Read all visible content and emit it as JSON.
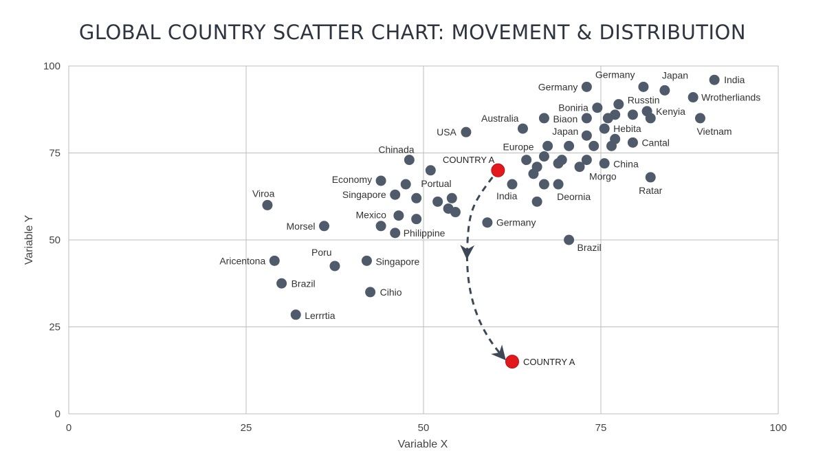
{
  "chart_data": {
    "type": "scatter",
    "title": "GLOBAL COUNTRY SCATTER CHART: MOVEMENT & DISTRIBUTION",
    "xlabel": "Variable X",
    "ylabel": "Variable Y",
    "xlim": [
      0,
      100
    ],
    "ylim": [
      0,
      100
    ],
    "xticks": [
      0,
      25,
      50,
      75,
      100
    ],
    "yticks": [
      0,
      25,
      50,
      75,
      100
    ],
    "grid": true,
    "colors": {
      "point": "#4f5b6b",
      "highlight": "#e3181d",
      "arrow": "#3d4856",
      "grid": "#bcbcbc"
    },
    "points": [
      {
        "x": 91,
        "y": 96,
        "label": "India"
      },
      {
        "x": 84,
        "y": 93,
        "label": "Japan"
      },
      {
        "x": 81,
        "y": 94,
        "label": "Germany"
      },
      {
        "x": 88,
        "y": 91,
        "label": "Wrotherliands"
      },
      {
        "x": 89,
        "y": 85,
        "label": "Vietnam"
      },
      {
        "x": 73,
        "y": 94,
        "label": "Germany"
      },
      {
        "x": 77.5,
        "y": 89,
        "label": "Russtin"
      },
      {
        "x": 74.5,
        "y": 88,
        "label": "Boniria"
      },
      {
        "x": 81.5,
        "y": 87,
        "label": "Kenyia"
      },
      {
        "x": 82,
        "y": 85,
        "label": ""
      },
      {
        "x": 79.5,
        "y": 86,
        "label": ""
      },
      {
        "x": 77,
        "y": 86,
        "label": ""
      },
      {
        "x": 73,
        "y": 85,
        "label": ""
      },
      {
        "x": 76,
        "y": 85,
        "label": ""
      },
      {
        "x": 67,
        "y": 85,
        "label": "Biaon"
      },
      {
        "x": 64,
        "y": 82,
        "label": "Australia"
      },
      {
        "x": 56,
        "y": 81,
        "label": "USA"
      },
      {
        "x": 75.5,
        "y": 82,
        "label": "Hebita"
      },
      {
        "x": 73,
        "y": 80,
        "label": "Japan"
      },
      {
        "x": 77,
        "y": 79,
        "label": ""
      },
      {
        "x": 79.5,
        "y": 78,
        "label": "Cantal"
      },
      {
        "x": 74,
        "y": 77,
        "label": ""
      },
      {
        "x": 76.5,
        "y": 77,
        "label": ""
      },
      {
        "x": 70.5,
        "y": 77,
        "label": ""
      },
      {
        "x": 67.5,
        "y": 77,
        "label": "Europe"
      },
      {
        "x": 67,
        "y": 74,
        "label": ""
      },
      {
        "x": 69.5,
        "y": 73,
        "label": ""
      },
      {
        "x": 73,
        "y": 73,
        "label": ""
      },
      {
        "x": 75.5,
        "y": 72,
        "label": "China"
      },
      {
        "x": 64.5,
        "y": 73,
        "label": ""
      },
      {
        "x": 66,
        "y": 71,
        "label": ""
      },
      {
        "x": 69,
        "y": 72,
        "label": ""
      },
      {
        "x": 72,
        "y": 71,
        "label": "Morgo"
      },
      {
        "x": 65.5,
        "y": 69,
        "label": ""
      },
      {
        "x": 82,
        "y": 68,
        "label": "Ratar"
      },
      {
        "x": 62.5,
        "y": 66,
        "label": "India"
      },
      {
        "x": 67,
        "y": 66,
        "label": ""
      },
      {
        "x": 69,
        "y": 66,
        "label": "Deornia"
      },
      {
        "x": 66,
        "y": 61,
        "label": ""
      },
      {
        "x": 59,
        "y": 55,
        "label": "Germany"
      },
      {
        "x": 70.5,
        "y": 50,
        "label": "Brazil"
      },
      {
        "x": 48,
        "y": 73,
        "label": "Chinada"
      },
      {
        "x": 51,
        "y": 70,
        "label": "Portual"
      },
      {
        "x": 44,
        "y": 67,
        "label": "Economy"
      },
      {
        "x": 47.5,
        "y": 66,
        "label": ""
      },
      {
        "x": 46,
        "y": 63,
        "label": "Singapore"
      },
      {
        "x": 49,
        "y": 62,
        "label": ""
      },
      {
        "x": 52,
        "y": 61,
        "label": ""
      },
      {
        "x": 54,
        "y": 62,
        "label": ""
      },
      {
        "x": 53.5,
        "y": 59,
        "label": ""
      },
      {
        "x": 54.5,
        "y": 58,
        "label": ""
      },
      {
        "x": 46.5,
        "y": 57,
        "label": "Mexico"
      },
      {
        "x": 49,
        "y": 56,
        "label": ""
      },
      {
        "x": 44,
        "y": 54,
        "label": ""
      },
      {
        "x": 46,
        "y": 52,
        "label": "Philippine"
      },
      {
        "x": 28,
        "y": 60,
        "label": "Viroa"
      },
      {
        "x": 36,
        "y": 54,
        "label": "Morsel"
      },
      {
        "x": 29,
        "y": 44,
        "label": "Aricentona"
      },
      {
        "x": 37.5,
        "y": 42.5,
        "label": "Poru"
      },
      {
        "x": 42,
        "y": 44,
        "label": "Singapore"
      },
      {
        "x": 30,
        "y": 37.5,
        "label": "Brazil"
      },
      {
        "x": 42.5,
        "y": 35,
        "label": "Cihio"
      },
      {
        "x": 32,
        "y": 28.5,
        "label": "Lerrrtia"
      }
    ],
    "highlight": {
      "label": "COUNTRY A",
      "from": {
        "x": 60.5,
        "y": 70
      },
      "to": {
        "x": 62.5,
        "y": 15
      }
    }
  }
}
